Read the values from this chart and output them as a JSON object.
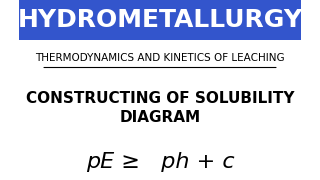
{
  "title": "HYDROMETALLURGY",
  "subtitle": "THERMODYNAMICS AND KINETICS OF LEACHING",
  "heading": "CONSTRUCTING OF SOLUBILITY\nDIAGRAM",
  "formula": "pE ≥   ph + c",
  "title_bg": "#3355cc",
  "title_color": "#ffffff",
  "bg_color": "#ffffff",
  "subtitle_color": "#000000",
  "heading_color": "#000000",
  "formula_color": "#000000",
  "title_fontsize": 18,
  "subtitle_fontsize": 7.5,
  "heading_fontsize": 11,
  "formula_fontsize": 16
}
